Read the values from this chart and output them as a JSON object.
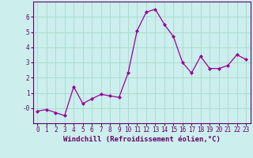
{
  "x": [
    0,
    1,
    2,
    3,
    4,
    5,
    6,
    7,
    8,
    9,
    10,
    11,
    12,
    13,
    14,
    15,
    16,
    17,
    18,
    19,
    20,
    21,
    22,
    23
  ],
  "y": [
    -0.2,
    -0.1,
    -0.3,
    -0.5,
    1.4,
    0.3,
    0.6,
    0.9,
    0.8,
    0.7,
    2.3,
    5.1,
    6.3,
    6.5,
    5.5,
    4.7,
    3.0,
    2.3,
    3.4,
    2.6,
    2.6,
    2.8,
    3.5,
    3.2
  ],
  "line_color": "#990099",
  "marker": "D",
  "marker_size": 2,
  "background_color": "#cceeed",
  "grid_color": "#aaddcc",
  "xlabel": "Windchill (Refroidissement éolien,°C)",
  "xlim": [
    -0.5,
    23.5
  ],
  "ylim": [
    -1.0,
    7.0
  ],
  "yticks": [
    0,
    1,
    2,
    3,
    4,
    5,
    6
  ],
  "ytick_labels": [
    "-0",
    "1",
    "2",
    "3",
    "4",
    "5",
    "6"
  ],
  "xticks": [
    0,
    1,
    2,
    3,
    4,
    5,
    6,
    7,
    8,
    9,
    10,
    11,
    12,
    13,
    14,
    15,
    16,
    17,
    18,
    19,
    20,
    21,
    22,
    23
  ],
  "axis_color": "#660066",
  "label_fontsize": 6.5,
  "tick_fontsize": 5.5
}
